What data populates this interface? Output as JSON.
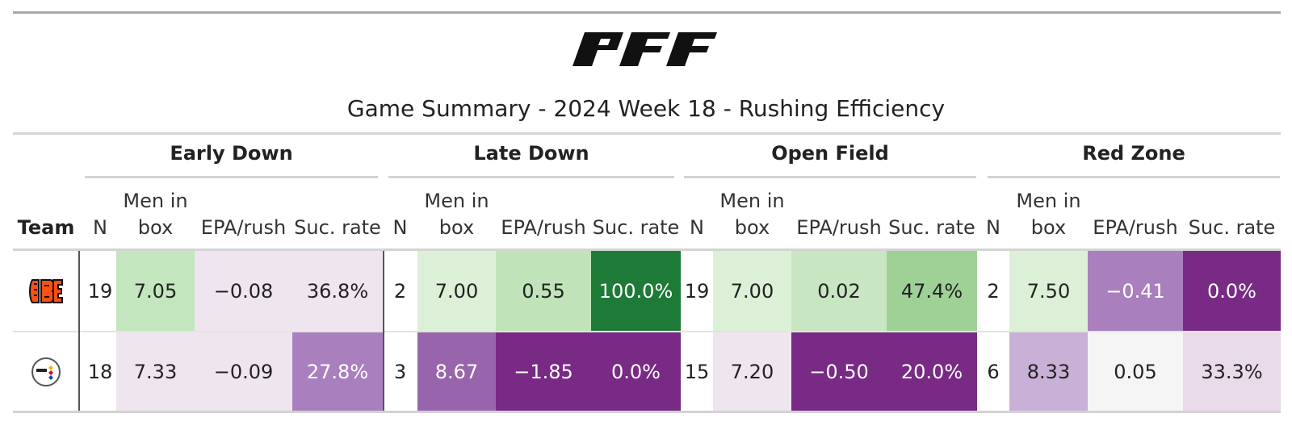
{
  "brand": {
    "logo_text": "PFF"
  },
  "title": "Game Summary - 2024 Week 18 - Rushing Efficiency",
  "groups": [
    "Early Down",
    "Late Down",
    "Open Field",
    "Red Zone"
  ],
  "columns": {
    "team": "Team",
    "n": "N",
    "men_in_box_line1": "Men in",
    "men_in_box_line2": "box",
    "epa": "EPA/rush",
    "suc": "Suc. rate"
  },
  "rows": [
    {
      "team": "Cincinnati Bengals",
      "team_icon": "bengals-logo",
      "values": [
        "19",
        "7.05",
        "−0.08",
        "36.8%",
        "2",
        "7.00",
        "0.55",
        "100.0%",
        "19",
        "7.00",
        "0.02",
        "47.4%",
        "2",
        "7.50",
        "−0.41",
        "0.0%"
      ]
    },
    {
      "team": "Pittsburgh Steelers",
      "team_icon": "steelers-logo",
      "values": [
        "18",
        "7.33",
        "−0.09",
        "27.8%",
        "3",
        "8.67",
        "−1.85",
        "0.0%",
        "15",
        "7.20",
        "−0.50",
        "20.0%",
        "6",
        "8.33",
        "0.05",
        "33.3%"
      ]
    }
  ],
  "cell_colors": [
    [
      "#ffffff",
      "#c4e6bf",
      "#efe5ef",
      "#efe5ef",
      "#ffffff",
      "#dbf0d6",
      "#c0e3b9",
      "#1e7a37",
      "#ffffff",
      "#dbf0d6",
      "#c8e6c2",
      "#9fd197",
      "#ffffff",
      "#dbf0d6",
      "#a97fbd",
      "#782a85"
    ],
    [
      "#ffffff",
      "#efe5ef",
      "#efe5ef",
      "#a97fbd",
      "#ffffff",
      "#9865ac",
      "#782a85",
      "#782a85",
      "#ffffff",
      "#efe5ef",
      "#782a85",
      "#782a85",
      "#ffffff",
      "#c9b0d6",
      "#f5f5f5",
      "#eadbea"
    ]
  ],
  "dark_text_cells": [
    [
      false,
      false,
      false,
      false,
      false,
      false,
      false,
      true,
      false,
      false,
      false,
      false,
      false,
      false,
      true,
      true
    ],
    [
      false,
      false,
      false,
      true,
      false,
      true,
      true,
      true,
      false,
      false,
      true,
      true,
      false,
      false,
      false,
      false
    ]
  ]
}
